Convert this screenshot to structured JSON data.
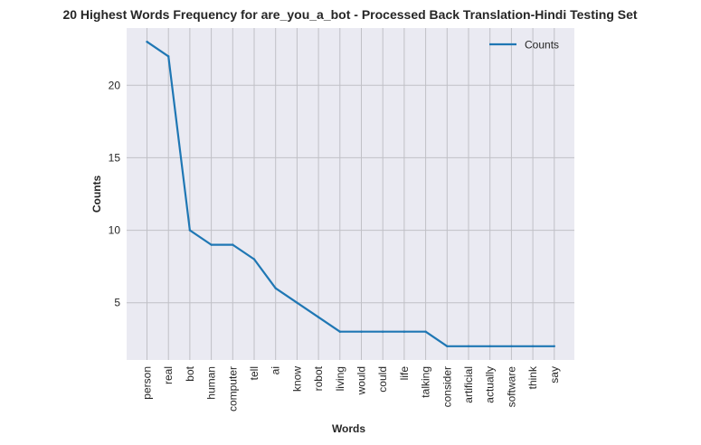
{
  "chart_data": {
    "type": "line",
    "title": "20 Highest Words Frequency for are_you_a_bot - Processed Back Translation-Hindi Testing Set",
    "xlabel": "Words",
    "ylabel": "Counts",
    "categories": [
      "person",
      "real",
      "bot",
      "human",
      "computer",
      "tell",
      "ai",
      "know",
      "robot",
      "living",
      "would",
      "could",
      "life",
      "talking",
      "consider",
      "artificial",
      "actually",
      "software",
      "think",
      "say"
    ],
    "series": [
      {
        "name": "Counts",
        "values": [
          23,
          22,
          10,
          9,
          9,
          8,
          6,
          5,
          4,
          3,
          3,
          3,
          3,
          3,
          2,
          2,
          2,
          2,
          2,
          2
        ]
      }
    ],
    "yticks": [
      5,
      10,
      15,
      20
    ],
    "ylim": [
      1.05,
      23.95
    ],
    "grid": true,
    "legend_position": "top-right",
    "line_color": "#1f77b4",
    "plot_background": "#eaeaf2",
    "grid_color": "#c0c0c6"
  }
}
